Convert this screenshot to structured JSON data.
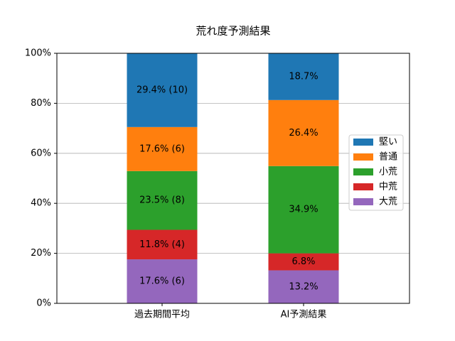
{
  "chart_data": {
    "type": "stacked_bar",
    "title": "荒れ度予測結果",
    "categories": [
      "過去期間平均",
      "AI予測結果"
    ],
    "series": [
      {
        "name": "大荒",
        "color": "#9467bd",
        "values": [
          17.6,
          13.2
        ],
        "value_labels": [
          "17.6% (6)",
          "13.2%"
        ]
      },
      {
        "name": "中荒",
        "color": "#d62728",
        "values": [
          11.8,
          6.8
        ],
        "value_labels": [
          "11.8% (4)",
          "6.8%"
        ]
      },
      {
        "name": "小荒",
        "color": "#2ca02c",
        "values": [
          23.5,
          34.9
        ],
        "value_labels": [
          "23.5% (8)",
          "34.9%"
        ]
      },
      {
        "name": "普通",
        "color": "#ff7f0e",
        "values": [
          17.6,
          26.4
        ],
        "value_labels": [
          "17.6% (6)",
          "26.4%"
        ]
      },
      {
        "name": "堅い",
        "color": "#1f77b4",
        "values": [
          29.4,
          18.7
        ],
        "value_labels": [
          "29.4% (10)",
          "18.7%"
        ]
      }
    ],
    "ylim": [
      0,
      100
    ],
    "yticks": [
      {
        "value": 0,
        "label": "0%"
      },
      {
        "value": 20,
        "label": "20%"
      },
      {
        "value": 40,
        "label": "40%"
      },
      {
        "value": 60,
        "label": "60%"
      },
      {
        "value": 80,
        "label": "80%"
      },
      {
        "value": 100,
        "label": "100%"
      }
    ],
    "grid": true,
    "legend": "right"
  }
}
